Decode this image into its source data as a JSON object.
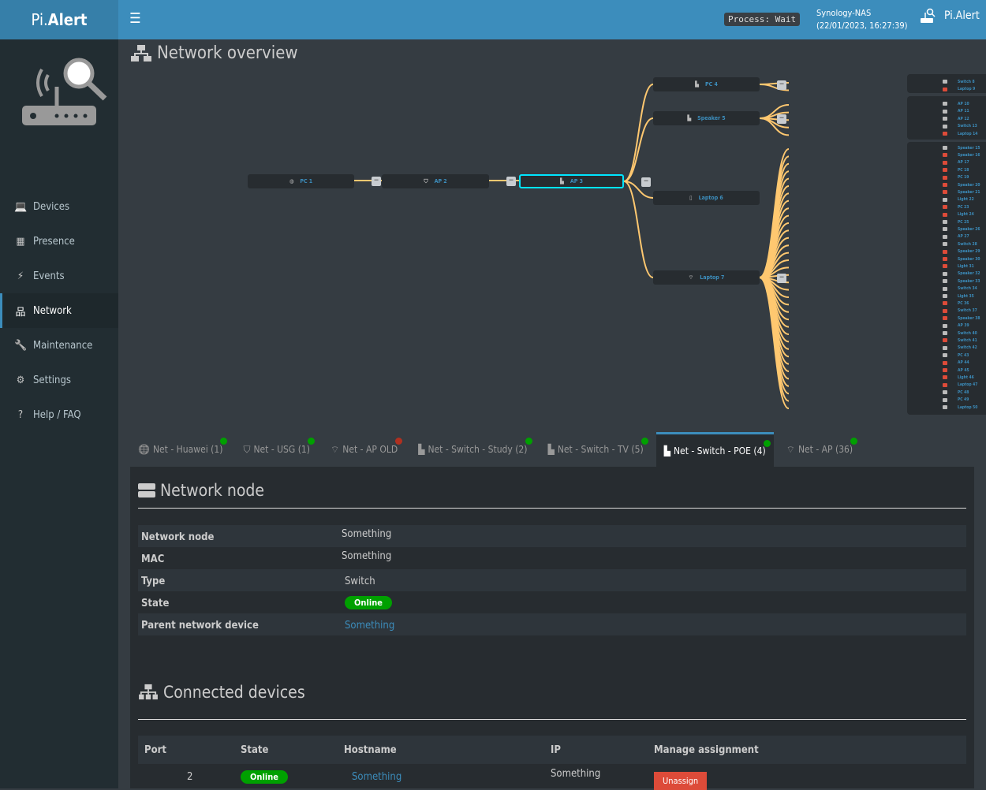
{
  "header": {
    "logo_pre": "Pi.",
    "logo_bold": "Alert",
    "process": "Process: Wait",
    "server": "Synology-NAS",
    "datetime": "(22/01/2023, 16:27:39)",
    "brand": "Pi.Alert"
  },
  "sidebar": {
    "items": [
      {
        "label": "Devices",
        "icon": "laptop-icon"
      },
      {
        "label": "Presence",
        "icon": "calendar-icon"
      },
      {
        "label": "Events",
        "icon": "bolt-icon"
      },
      {
        "label": "Network",
        "icon": "sitemap-icon",
        "active": true
      },
      {
        "label": "Maintenance",
        "icon": "wrench-icon"
      },
      {
        "label": "Settings",
        "icon": "gear-icon"
      },
      {
        "label": "Help / FAQ",
        "icon": "question-icon"
      }
    ]
  },
  "page_title": "Network overview",
  "tree": {
    "chain": [
      {
        "name": "PC 1",
        "icon": "globe"
      },
      {
        "name": "AP 2",
        "icon": "shield"
      },
      {
        "name": "AP 3",
        "icon": "ethernet",
        "selected": true
      }
    ],
    "children": [
      {
        "name": "PC 4",
        "icon": "ethernet",
        "leaves": [
          {
            "name": "Switch 8",
            "down": false
          },
          {
            "name": "Laptop 9",
            "down": true
          }
        ]
      },
      {
        "name": "Speaker 5",
        "icon": "ethernet",
        "leaves": [
          {
            "name": "AP 10",
            "down": false
          },
          {
            "name": "AP 11",
            "down": false
          },
          {
            "name": "AP 12",
            "down": false
          },
          {
            "name": "Switch 13",
            "down": false
          },
          {
            "name": "Laptop 14",
            "down": true
          }
        ]
      },
      {
        "name": "Laptop 6",
        "icon": "device",
        "leaves": []
      },
      {
        "name": "Laptop 7",
        "icon": "wifi",
        "leaves": [
          {
            "name": "Speaker 15",
            "down": false
          },
          {
            "name": "Speaker 16",
            "down": true
          },
          {
            "name": "AP 17",
            "down": true
          },
          {
            "name": "PC 18",
            "down": true
          },
          {
            "name": "PC 19",
            "down": true
          },
          {
            "name": "Speaker 20",
            "down": true
          },
          {
            "name": "Speaker 21",
            "down": true
          },
          {
            "name": "Light 22",
            "down": false
          },
          {
            "name": "PC 23",
            "down": true
          },
          {
            "name": "Light 24",
            "down": true
          },
          {
            "name": "PC 25",
            "down": false
          },
          {
            "name": "Speaker 26",
            "down": false
          },
          {
            "name": "AP 27",
            "down": false
          },
          {
            "name": "Switch 28",
            "down": false
          },
          {
            "name": "Speaker 29",
            "down": true
          },
          {
            "name": "Speaker 30",
            "down": true
          },
          {
            "name": "Light 31",
            "down": true
          },
          {
            "name": "Speaker 32",
            "down": false
          },
          {
            "name": "Speaker 33",
            "down": false
          },
          {
            "name": "Switch 34",
            "down": false
          },
          {
            "name": "Light 35",
            "down": false
          },
          {
            "name": "PC 36",
            "down": true
          },
          {
            "name": "Switch 37",
            "down": true
          },
          {
            "name": "Speaker 38",
            "down": true
          },
          {
            "name": "AP 39",
            "down": false
          },
          {
            "name": "Switch 40",
            "down": false
          },
          {
            "name": "Switch 41",
            "down": true
          },
          {
            "name": "Switch 42",
            "down": false
          },
          {
            "name": "PC 43",
            "down": false
          },
          {
            "name": "AP 44",
            "down": true
          },
          {
            "name": "AP 45",
            "down": true
          },
          {
            "name": "Light 46",
            "down": true
          },
          {
            "name": "Laptop 47",
            "down": true
          },
          {
            "name": "PC 48",
            "down": false
          },
          {
            "name": "PC 49",
            "down": false
          },
          {
            "name": "Laptop 50",
            "down": false
          }
        ]
      }
    ],
    "collapse_label": "−"
  },
  "tabs": [
    {
      "label": "Net - Huawei (1)",
      "icon": "globe-icon",
      "status": "#00a000"
    },
    {
      "label": "Net - USG (1)",
      "icon": "shield-icon",
      "status": "#00a000"
    },
    {
      "label": "Net - AP OLD",
      "icon": "wifi-icon",
      "status": "#b03020"
    },
    {
      "label": "Net - Switch - Study (2)",
      "icon": "ethernet-icon",
      "status": "#00a000"
    },
    {
      "label": "Net - Switch - TV (5)",
      "icon": "ethernet-icon",
      "status": "#00a000"
    },
    {
      "label": "Net - Switch - POE (4)",
      "icon": "ethernet-icon",
      "status": "#00a000",
      "active": true
    },
    {
      "label": "Net - AP (36)",
      "icon": "wifi-icon",
      "status": "#00a000"
    }
  ],
  "node": {
    "title": "Network node",
    "rows": [
      {
        "label": "Network node",
        "value": "Something"
      },
      {
        "label": "MAC",
        "value": "Something"
      },
      {
        "label": "Type",
        "value": "Switch"
      },
      {
        "label": "State",
        "value": "Online"
      },
      {
        "label": "Parent network device",
        "value": "Something"
      }
    ]
  },
  "connected": {
    "title": "Connected devices",
    "headers": [
      "Port",
      "State",
      "Hostname",
      "IP",
      "Manage assignment"
    ],
    "rows": [
      {
        "port": "2",
        "state": "Online",
        "hostname": "Something",
        "ip": "Something",
        "action": "Unassign"
      }
    ]
  }
}
